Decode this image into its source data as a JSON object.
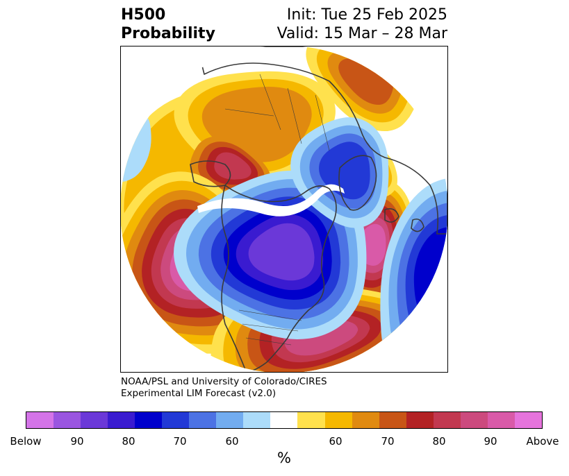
{
  "title": {
    "left_line1": "H500",
    "left_line2": "Probability",
    "right_line1": "Init: Tue 25 Feb 2025",
    "right_line2": "Valid: 15 Mar – 28 Mar"
  },
  "credit": {
    "line1": "NOAA/PSL and University of Colorado/CIRES",
    "line2": "Experimental LIM Forecast (v2.0)"
  },
  "colorbar": {
    "unit": "%",
    "colors": [
      "#d474e8",
      "#9a55e0",
      "#6b38d8",
      "#3a1bd0",
      "#0000cc",
      "#2239d6",
      "#4c72e4",
      "#72acf0",
      "#acdcfa",
      "#ffffff",
      "#ffe14d",
      "#f5b800",
      "#e08a10",
      "#c85516",
      "#b32224",
      "#c23850",
      "#cc4a7e",
      "#d95aa8",
      "#e674dc"
    ],
    "ticks": [
      {
        "label": "Below"
      },
      {
        "label": "90"
      },
      {
        "label": "80"
      },
      {
        "label": "70"
      },
      {
        "label": "60"
      },
      {
        "label": "60"
      },
      {
        "label": "70"
      },
      {
        "label": "80"
      },
      {
        "label": "90"
      },
      {
        "label": "Above"
      }
    ]
  },
  "map": {
    "projection": "north-polar-stereographic",
    "field": "500 hPa height probability",
    "anomalies": [
      {
        "region": "north-pacific",
        "sign": "above",
        "peak_class": 18
      },
      {
        "region": "western-alaska",
        "sign": "above",
        "peak_class": 16
      },
      {
        "region": "northeast-atlantic",
        "sign": "above",
        "peak_class": 17
      },
      {
        "region": "southeast-us-atlantic",
        "sign": "above",
        "peak_class": 17
      },
      {
        "region": "central-canada",
        "sign": "below",
        "peak_class": 2
      },
      {
        "region": "northwest-eurasia",
        "sign": "below",
        "peak_class": 6
      },
      {
        "region": "central-atlantic",
        "sign": "below",
        "peak_class": 4
      },
      {
        "region": "east-siberia",
        "sign": "above",
        "peak_class": 14
      },
      {
        "region": "arctic-russia",
        "sign": "above",
        "peak_class": 12
      }
    ]
  }
}
